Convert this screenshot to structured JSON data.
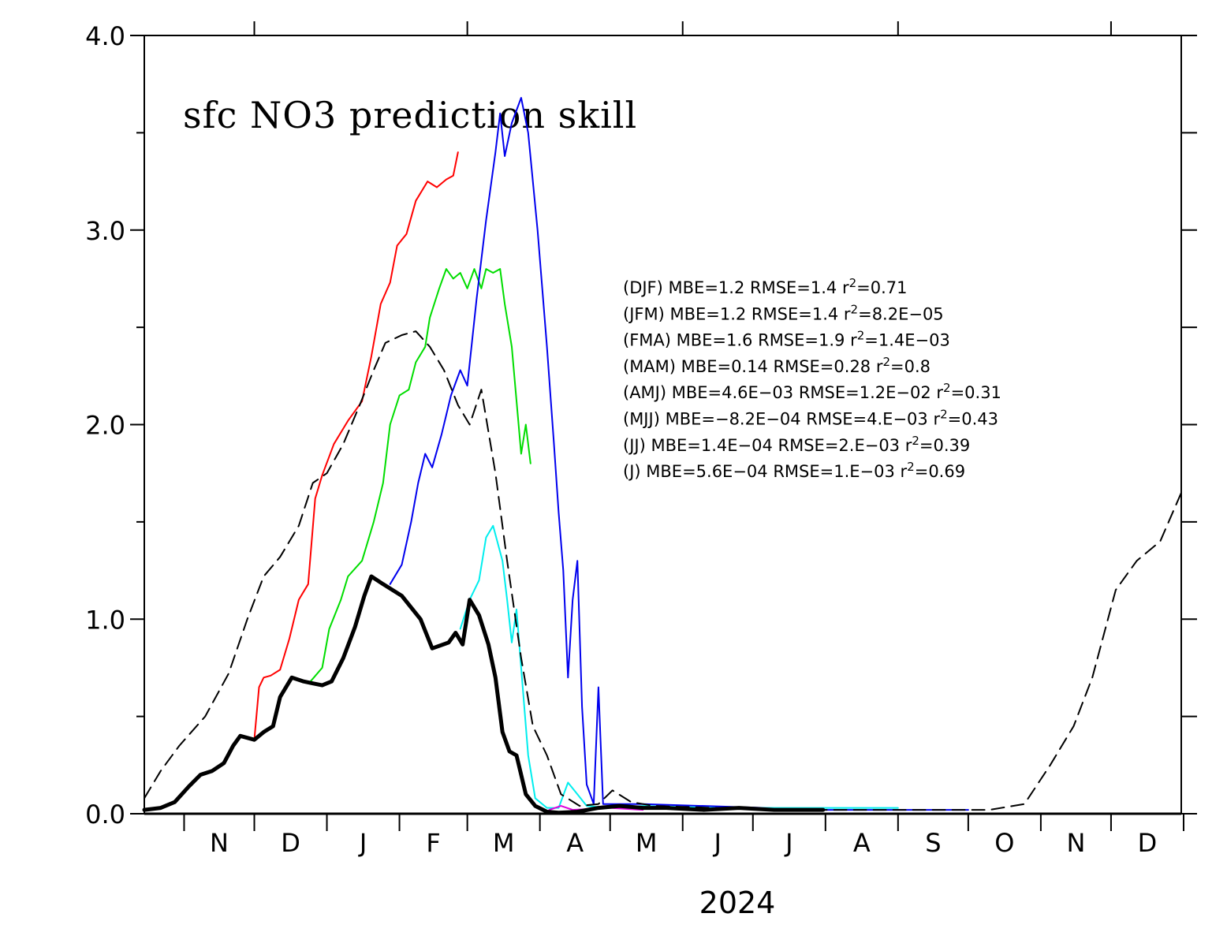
{
  "chart_data": {
    "type": "line",
    "title": "sfc NO3 prediction skill",
    "x_axis": {
      "year_label": "2024",
      "range": [
        "2023-10-15",
        "2024-12-31"
      ],
      "month_labels": [
        "N",
        "D",
        "J",
        "F",
        "M",
        "A",
        "M",
        "J",
        "J",
        "A",
        "S",
        "O",
        "N",
        "D"
      ]
    },
    "y_axis": {
      "range": [
        0,
        4.0
      ],
      "tick_labels": [
        "0.0",
        "1.0",
        "2.0",
        "3.0",
        "4.0"
      ],
      "minor_ticks": [
        0.5,
        1.5,
        2.5,
        3.5
      ]
    },
    "stats_text": [
      {
        "season": "(DJF)",
        "mbe": "MBE=1.2",
        "rmse": "RMSE=1.4",
        "r2": "=0.71"
      },
      {
        "season": "(JFM)",
        "mbe": "MBE=1.2",
        "rmse": "RMSE=1.4",
        "r2": "=8.2E−05"
      },
      {
        "season": "(FMA)",
        "mbe": "MBE=1.6",
        "rmse": "RMSE=1.9",
        "r2": "=1.4E−03"
      },
      {
        "season": "(MAM)",
        "mbe": "MBE=0.14",
        "rmse": "RMSE=0.28",
        "r2": "=0.8"
      },
      {
        "season": "(AMJ)",
        "mbe": "MBE=4.6E−03",
        "rmse": "RMSE=1.2E−02",
        "r2": "=0.31"
      },
      {
        "season": "(MJJ)",
        "mbe": "MBE=−8.2E−04",
        "rmse": "RMSE=4.E−03",
        "r2": "=0.43"
      },
      {
        "season": "(JJ)",
        "mbe": "MBE=1.4E−04",
        "rmse": "RMSE=2.E−03",
        "r2": "=0.39"
      },
      {
        "season": "(J)",
        "mbe": "MBE=5.6E−04",
        "rmse": "RMSE=1.E−03",
        "r2": "=0.69"
      }
    ],
    "r_label": "r",
    "r_sup": "2",
    "series": [
      {
        "color": "#ff0000",
        "width": 2,
        "dash": "",
        "points": [
          [
            "2023-12-01",
            0.38
          ],
          [
            "2023-12-03",
            0.65
          ],
          [
            "2023-12-05",
            0.7
          ],
          [
            "2023-12-08",
            0.71
          ],
          [
            "2023-12-12",
            0.74
          ],
          [
            "2023-12-16",
            0.9
          ],
          [
            "2023-12-20",
            1.1
          ],
          [
            "2023-12-24",
            1.18
          ],
          [
            "2023-12-27",
            1.62
          ],
          [
            "2023-12-30",
            1.74
          ],
          [
            "2024-01-04",
            1.9
          ],
          [
            "2024-01-10",
            2.02
          ],
          [
            "2024-01-16",
            2.12
          ],
          [
            "2024-01-20",
            2.35
          ],
          [
            "2024-01-24",
            2.62
          ],
          [
            "2024-01-28",
            2.73
          ],
          [
            "2024-01-31",
            2.92
          ],
          [
            "2024-02-04",
            2.98
          ],
          [
            "2024-02-08",
            3.15
          ],
          [
            "2024-02-13",
            3.25
          ],
          [
            "2024-02-17",
            3.22
          ],
          [
            "2024-02-21",
            3.26
          ],
          [
            "2024-02-24",
            3.28
          ],
          [
            "2024-02-26",
            3.4
          ]
        ]
      },
      {
        "color": "#00dd00",
        "width": 2,
        "dash": "",
        "points": [
          [
            "2023-12-25",
            0.68
          ],
          [
            "2023-12-30",
            0.75
          ],
          [
            "2024-01-02",
            0.95
          ],
          [
            "2024-01-07",
            1.1
          ],
          [
            "2024-01-10",
            1.22
          ],
          [
            "2024-01-16",
            1.3
          ],
          [
            "2024-01-21",
            1.5
          ],
          [
            "2024-01-25",
            1.7
          ],
          [
            "2024-01-28",
            2.0
          ],
          [
            "2024-02-01",
            2.15
          ],
          [
            "2024-02-05",
            2.18
          ],
          [
            "2024-02-08",
            2.32
          ],
          [
            "2024-02-12",
            2.4
          ],
          [
            "2024-02-14",
            2.55
          ],
          [
            "2024-02-18",
            2.7
          ],
          [
            "2024-02-21",
            2.8
          ],
          [
            "2024-02-24",
            2.75
          ],
          [
            "2024-02-27",
            2.78
          ],
          [
            "2024-03-01",
            2.7
          ],
          [
            "2024-03-04",
            2.8
          ],
          [
            "2024-03-07",
            2.7
          ],
          [
            "2024-03-09",
            2.8
          ],
          [
            "2024-03-12",
            2.78
          ],
          [
            "2024-03-15",
            2.8
          ],
          [
            "2024-03-17",
            2.62
          ],
          [
            "2024-03-20",
            2.4
          ],
          [
            "2024-03-24",
            1.85
          ],
          [
            "2024-03-26",
            2.0
          ],
          [
            "2024-03-28",
            1.8
          ]
        ]
      },
      {
        "color": "#0000ee",
        "width": 2,
        "dash": "",
        "points": [
          [
            "2024-01-28",
            1.18
          ],
          [
            "2024-02-02",
            1.28
          ],
          [
            "2024-02-06",
            1.5
          ],
          [
            "2024-02-09",
            1.7
          ],
          [
            "2024-02-12",
            1.85
          ],
          [
            "2024-02-15",
            1.78
          ],
          [
            "2024-02-19",
            1.95
          ],
          [
            "2024-02-23",
            2.15
          ],
          [
            "2024-02-27",
            2.28
          ],
          [
            "2024-03-01",
            2.2
          ],
          [
            "2024-03-05",
            2.65
          ],
          [
            "2024-03-09",
            3.05
          ],
          [
            "2024-03-13",
            3.4
          ],
          [
            "2024-03-15",
            3.6
          ],
          [
            "2024-03-17",
            3.38
          ],
          [
            "2024-03-20",
            3.55
          ],
          [
            "2024-03-24",
            3.68
          ],
          [
            "2024-03-27",
            3.5
          ],
          [
            "2024-03-31",
            3.0
          ],
          [
            "2024-04-04",
            2.4
          ],
          [
            "2024-04-07",
            1.9
          ],
          [
            "2024-04-09",
            1.55
          ],
          [
            "2024-04-11",
            1.25
          ],
          [
            "2024-04-13",
            0.7
          ],
          [
            "2024-04-15",
            1.1
          ],
          [
            "2024-04-17",
            1.3
          ],
          [
            "2024-04-19",
            0.55
          ],
          [
            "2024-04-21",
            0.15
          ],
          [
            "2024-04-24",
            0.05
          ],
          [
            "2024-04-26",
            0.65
          ],
          [
            "2024-04-28",
            0.05
          ],
          [
            "2024-05-15",
            0.05
          ],
          [
            "2024-08-01",
            0.02
          ],
          [
            "2024-10-01",
            0.02
          ]
        ]
      },
      {
        "color": "#00eeee",
        "width": 2,
        "dash": "",
        "points": [
          [
            "2024-02-27",
            0.95
          ],
          [
            "2024-03-02",
            1.1
          ],
          [
            "2024-03-06",
            1.2
          ],
          [
            "2024-03-09",
            1.42
          ],
          [
            "2024-03-12",
            1.48
          ],
          [
            "2024-03-16",
            1.3
          ],
          [
            "2024-03-18",
            1.1
          ],
          [
            "2024-03-20",
            0.88
          ],
          [
            "2024-03-22",
            1.05
          ],
          [
            "2024-03-24",
            0.75
          ],
          [
            "2024-03-27",
            0.3
          ],
          [
            "2024-03-30",
            0.08
          ],
          [
            "2024-04-04",
            0.03
          ],
          [
            "2024-04-09",
            0.03
          ],
          [
            "2024-04-13",
            0.16
          ],
          [
            "2024-04-17",
            0.1
          ],
          [
            "2024-04-21",
            0.04
          ],
          [
            "2024-05-01",
            0.03
          ],
          [
            "2024-05-15",
            0.04
          ],
          [
            "2024-06-15",
            0.03
          ],
          [
            "2024-08-01",
            0.03
          ],
          [
            "2024-09-01",
            0.03
          ]
        ]
      },
      {
        "color": "#dd00dd",
        "width": 2,
        "dash": "",
        "points": [
          [
            "2024-04-05",
            0.02
          ],
          [
            "2024-04-10",
            0.04
          ],
          [
            "2024-04-15",
            0.02
          ],
          [
            "2024-05-01",
            0.03
          ],
          [
            "2024-05-15",
            0.02
          ]
        ]
      },
      {
        "color": "#000000",
        "width": 2,
        "dash": "16,9",
        "points": [
          [
            "2023-10-15",
            0.08
          ],
          [
            "2023-10-22",
            0.22
          ],
          [
            "2023-10-30",
            0.35
          ],
          [
            "2023-11-10",
            0.5
          ],
          [
            "2023-11-20",
            0.72
          ],
          [
            "2023-11-28",
            1.0
          ],
          [
            "2023-12-05",
            1.22
          ],
          [
            "2023-12-12",
            1.32
          ],
          [
            "2023-12-20",
            1.48
          ],
          [
            "2023-12-26",
            1.7
          ],
          [
            "2024-01-01",
            1.75
          ],
          [
            "2024-01-08",
            1.9
          ],
          [
            "2024-01-15",
            2.1
          ],
          [
            "2024-01-21",
            2.28
          ],
          [
            "2024-01-26",
            2.42
          ],
          [
            "2024-02-02",
            2.46
          ],
          [
            "2024-02-08",
            2.48
          ],
          [
            "2024-02-14",
            2.4
          ],
          [
            "2024-02-20",
            2.28
          ],
          [
            "2024-02-26",
            2.1
          ],
          [
            "2024-03-02",
            2.0
          ],
          [
            "2024-03-07",
            2.18
          ],
          [
            "2024-03-13",
            1.75
          ],
          [
            "2024-03-18",
            1.3
          ],
          [
            "2024-03-24",
            0.8
          ],
          [
            "2024-03-29",
            0.45
          ],
          [
            "2024-04-04",
            0.3
          ],
          [
            "2024-04-10",
            0.1
          ],
          [
            "2024-04-18",
            0.04
          ],
          [
            "2024-04-26",
            0.05
          ],
          [
            "2024-05-02",
            0.12
          ],
          [
            "2024-05-10",
            0.06
          ],
          [
            "2024-05-20",
            0.04
          ],
          [
            "2024-06-15",
            0.03
          ],
          [
            "2024-08-01",
            0.02
          ],
          [
            "2024-09-15",
            0.02
          ],
          [
            "2024-10-10",
            0.02
          ],
          [
            "2024-10-25",
            0.05
          ],
          [
            "2024-11-05",
            0.25
          ],
          [
            "2024-11-15",
            0.45
          ],
          [
            "2024-11-23",
            0.7
          ],
          [
            "2024-12-03",
            1.15
          ],
          [
            "2024-12-12",
            1.3
          ],
          [
            "2024-12-22",
            1.4
          ],
          [
            "2024-12-31",
            1.65
          ]
        ]
      },
      {
        "color": "#000000",
        "width": 5,
        "dash": "",
        "points": [
          [
            "2023-10-15",
            0.02
          ],
          [
            "2023-10-22",
            0.03
          ],
          [
            "2023-10-28",
            0.06
          ],
          [
            "2023-11-03",
            0.14
          ],
          [
            "2023-11-08",
            0.2
          ],
          [
            "2023-11-13",
            0.22
          ],
          [
            "2023-11-18",
            0.26
          ],
          [
            "2023-11-22",
            0.35
          ],
          [
            "2023-11-25",
            0.4
          ],
          [
            "2023-12-01",
            0.38
          ],
          [
            "2023-12-05",
            0.42
          ],
          [
            "2023-12-09",
            0.45
          ],
          [
            "2023-12-12",
            0.6
          ],
          [
            "2023-12-17",
            0.7
          ],
          [
            "2023-12-22",
            0.68
          ],
          [
            "2023-12-26",
            0.67
          ],
          [
            "2023-12-30",
            0.66
          ],
          [
            "2024-01-03",
            0.68
          ],
          [
            "2024-01-08",
            0.8
          ],
          [
            "2024-01-13",
            0.96
          ],
          [
            "2024-01-17",
            1.12
          ],
          [
            "2024-01-20",
            1.22
          ],
          [
            "2024-01-25",
            1.18
          ],
          [
            "2024-02-02",
            1.12
          ],
          [
            "2024-02-10",
            1.0
          ],
          [
            "2024-02-15",
            0.85
          ],
          [
            "2024-02-22",
            0.88
          ],
          [
            "2024-02-25",
            0.93
          ],
          [
            "2024-02-28",
            0.87
          ],
          [
            "2024-03-02",
            1.1
          ],
          [
            "2024-03-06",
            1.02
          ],
          [
            "2024-03-10",
            0.87
          ],
          [
            "2024-03-13",
            0.7
          ],
          [
            "2024-03-16",
            0.42
          ],
          [
            "2024-03-19",
            0.32
          ],
          [
            "2024-03-22",
            0.3
          ],
          [
            "2024-03-26",
            0.1
          ],
          [
            "2024-03-30",
            0.04
          ],
          [
            "2024-04-04",
            0.01
          ],
          [
            "2024-04-09",
            0.005
          ],
          [
            "2024-04-17",
            0.01
          ],
          [
            "2024-04-26",
            0.03
          ],
          [
            "2024-05-05",
            0.04
          ],
          [
            "2024-05-15",
            0.03
          ],
          [
            "2024-05-25",
            0.03
          ],
          [
            "2024-06-10",
            0.02
          ],
          [
            "2024-06-25",
            0.03
          ],
          [
            "2024-07-10",
            0.02
          ],
          [
            "2024-07-31",
            0.02
          ]
        ]
      }
    ]
  }
}
